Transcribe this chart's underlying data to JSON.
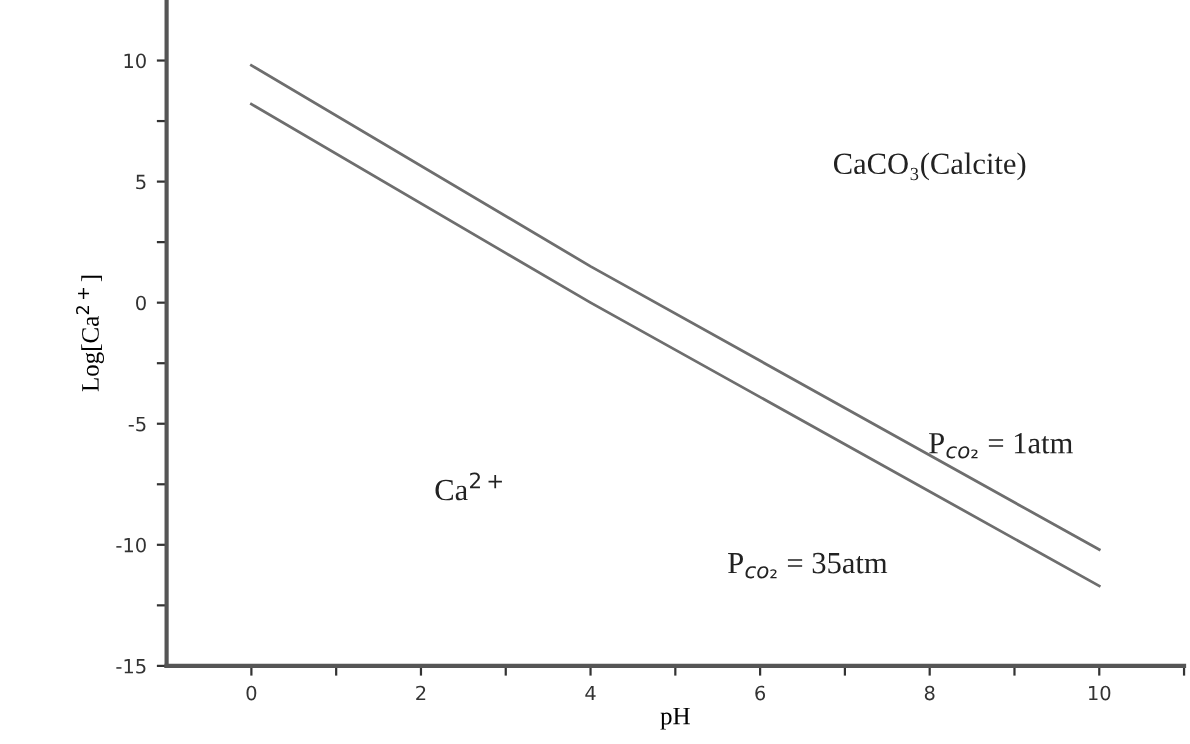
{
  "chart_data": {
    "type": "line",
    "xlabel": "pH",
    "ylabel": "Log[Ca$^{2+}$]",
    "xlim": [
      -1,
      11
    ],
    "ylim": [
      -15,
      12.5
    ],
    "xticks": [
      0,
      {
        "value": 1,
        "label": null
      },
      2,
      {
        "value": 3,
        "label": null
      },
      4,
      {
        "value": 5,
        "label": null
      },
      6,
      {
        "value": 7,
        "label": null
      },
      8,
      {
        "value": 9,
        "label": null
      },
      10,
      {
        "value": 11,
        "label": null
      }
    ],
    "yticks": [
      -15,
      {
        "value": -12.5,
        "label": null
      },
      -10,
      {
        "value": -7.5,
        "label": null
      },
      -5,
      {
        "value": -2.5,
        "label": null
      },
      0,
      {
        "value": 2.5,
        "label": null
      },
      5,
      {
        "value": 7.5,
        "label": null
      },
      10
    ],
    "grid": false,
    "marker": "none",
    "line_style": "solid",
    "series": [
      {
        "color": "#6e6e6e",
        "x": [
          0,
          4,
          10
        ],
        "values": [
          9.8,
          1.5,
          -10.2
        ]
      },
      {
        "color": "#6e6e6e",
        "x": [
          0,
          4,
          10
        ],
        "values": [
          8.2,
          0.0,
          -11.7
        ]
      }
    ],
    "annotations": [
      "CaCO₃(Calcite)",
      "P$_{co₂}$ = 1atm",
      "P$_{co₂}$ = 35atm",
      "Ca$^{2+}$"
    ]
  }
}
